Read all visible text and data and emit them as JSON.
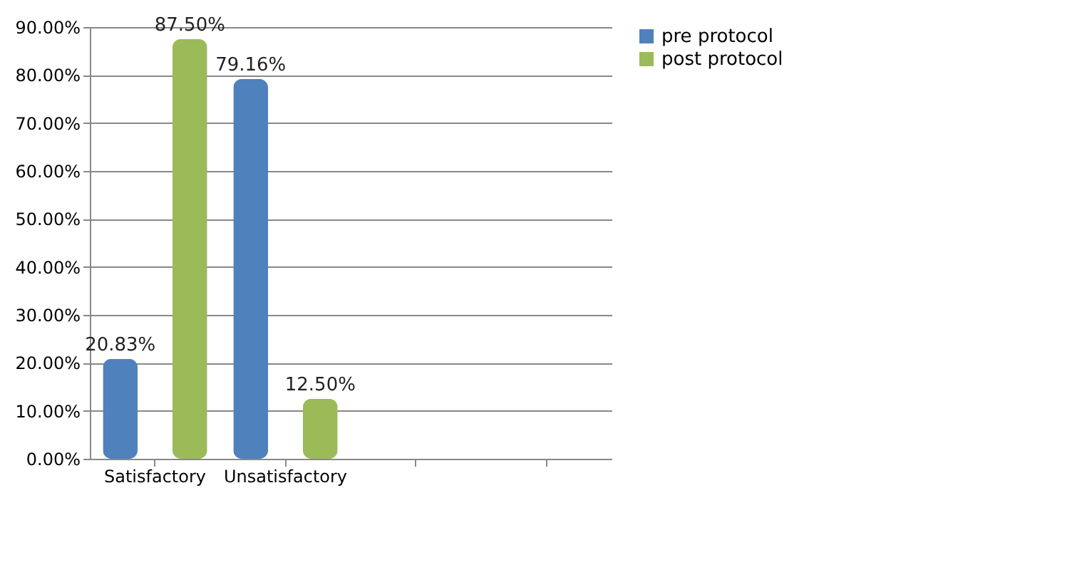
{
  "chart_data": {
    "type": "bar",
    "categories": [
      "Satisfactory",
      "Unsatisfactory",
      null,
      null
    ],
    "series": [
      {
        "name": "pre protocol",
        "color": "#4f81bd",
        "values": [
          20.83,
          79.16,
          null,
          null
        ],
        "value_labels": [
          "20.83%",
          "79.16%",
          null,
          null
        ]
      },
      {
        "name": "post protocol",
        "color": "#9bbb59",
        "values": [
          87.5,
          12.5,
          null,
          null
        ],
        "value_labels": [
          "87.50%",
          "12.50%",
          null,
          null
        ]
      }
    ],
    "ylim": [
      0,
      90
    ],
    "yticks": [
      {
        "value": 0,
        "label": "0.00%"
      },
      {
        "value": 10,
        "label": "10.00%"
      },
      {
        "value": 20,
        "label": "20.00%"
      },
      {
        "value": 30,
        "label": "30.00%"
      },
      {
        "value": 40,
        "label": "40.00%"
      },
      {
        "value": 50,
        "label": "50.00%"
      },
      {
        "value": 60,
        "label": "60.00%"
      },
      {
        "value": 70,
        "label": "70.00%"
      },
      {
        "value": 80,
        "label": "80.00%"
      },
      {
        "value": 90,
        "label": "90.00%"
      }
    ],
    "grid": "y",
    "legend": "right"
  }
}
